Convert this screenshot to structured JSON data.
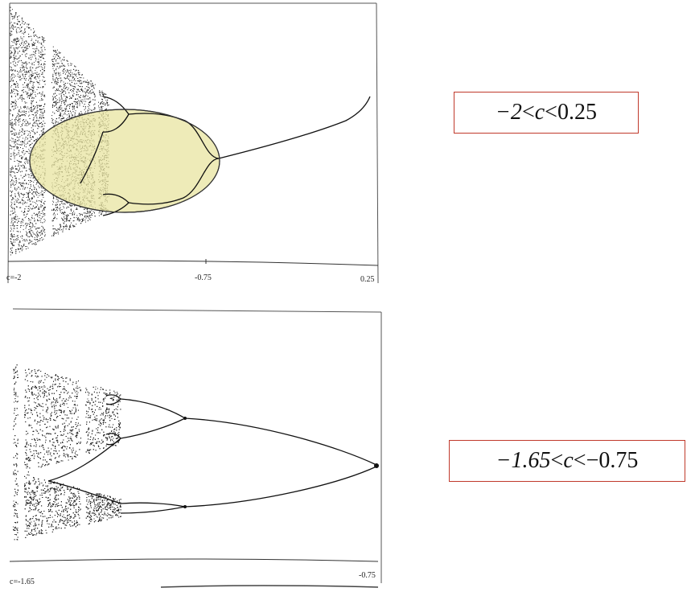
{
  "top_panel": {
    "tick_labels": {
      "left": "c=-2",
      "middle": "-0.75",
      "right": "0.25"
    },
    "highlight_color": "#e8e4a0"
  },
  "bottom_panel": {
    "tick_labels": {
      "left": "c=-1.65",
      "right": "-0.75"
    }
  },
  "range_labels": {
    "top": {
      "lower": "−2",
      "op1": "<",
      "variable": "c",
      "op2": "<",
      "upper": "0.25"
    },
    "bottom": {
      "lower": "−1.65",
      "op1": "<",
      "variable": "c",
      "op2": "<",
      "upper": "−0.75"
    }
  },
  "colors": {
    "box_border": "#c0392b",
    "ink": "#111111"
  }
}
